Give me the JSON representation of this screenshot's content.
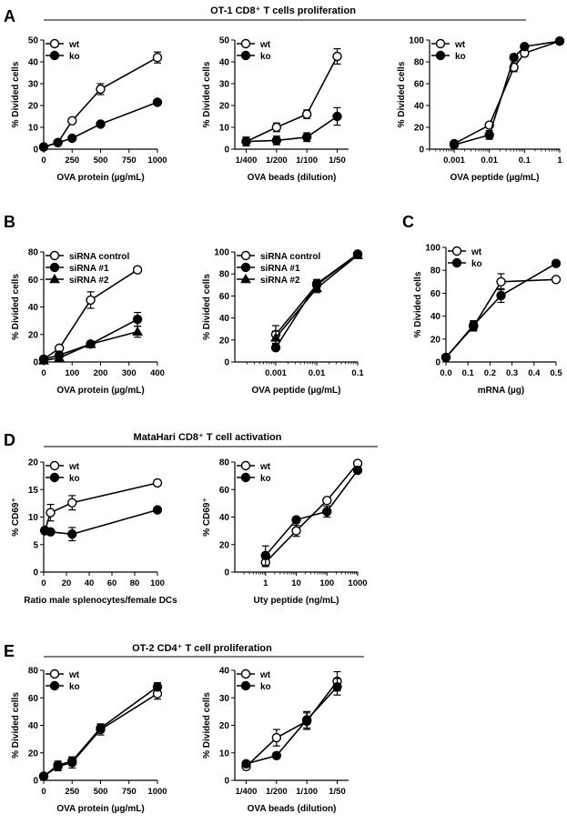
{
  "sections": [
    {
      "letter": "A",
      "title": "OT-1 CD8⁺ T cells proliferation"
    },
    {
      "letter": "B",
      "title": ""
    },
    {
      "letter": "C",
      "title": ""
    },
    {
      "letter": "D",
      "title": "MataHari CD8⁺ T cell activation"
    },
    {
      "letter": "E",
      "title": "OT-2 CD4⁺ T cell proliferation"
    }
  ],
  "chart_data": [
    {
      "id": "A1",
      "type": "line",
      "xscale": "linear",
      "xlabel": "OVA protein (µg/mL)",
      "ylabel": "% Divided cells",
      "xlim": [
        0,
        1000
      ],
      "ylim": [
        0,
        50
      ],
      "xticks": [
        0,
        250,
        500,
        750,
        1000
      ],
      "xticklabels": [
        "0",
        "250",
        "500",
        "750",
        "1000"
      ],
      "yticks": [
        0,
        10,
        20,
        30,
        40,
        50
      ],
      "legend": "top-left",
      "series": [
        {
          "name": "wt",
          "marker": "open-circle",
          "x": [
            0,
            125,
            250,
            500,
            1000
          ],
          "y": [
            1,
            3,
            13,
            27.5,
            42
          ],
          "err": [
            0.5,
            0.5,
            1,
            2.5,
            2.5
          ]
        },
        {
          "name": "ko",
          "marker": "filled-circle",
          "x": [
            0,
            125,
            250,
            500,
            1000
          ],
          "y": [
            1,
            3,
            5,
            11.5,
            21.5
          ],
          "err": [
            0.5,
            0.5,
            0.5,
            0.5,
            0.5
          ]
        }
      ]
    },
    {
      "id": "A2",
      "type": "line",
      "xscale": "category",
      "xlabel": "OVA beads (dilution)",
      "ylabel": "% Divided cells",
      "categories": [
        "1/400",
        "1/200",
        "1/100",
        "1/50"
      ],
      "ylim": [
        0,
        50
      ],
      "yticks": [
        0,
        10,
        20,
        30,
        40,
        50
      ],
      "legend": "top-left",
      "series": [
        {
          "name": "wt",
          "marker": "open-circle",
          "y": [
            3.5,
            10,
            16,
            42.5
          ],
          "err": [
            2,
            2,
            2,
            3.5
          ]
        },
        {
          "name": "ko",
          "marker": "filled-circle",
          "y": [
            3.5,
            4,
            5.5,
            15
          ],
          "err": [
            2,
            2,
            2,
            4
          ]
        }
      ]
    },
    {
      "id": "A3",
      "type": "line",
      "xscale": "log",
      "xlabel": "OVA peptide (µg/mL)",
      "ylabel": "% Divided cells",
      "xlim": [
        0.0002,
        1
      ],
      "ylim": [
        0,
        100
      ],
      "xticks": [
        0.001,
        0.01,
        0.1,
        1
      ],
      "xticklabels": [
        "0.001",
        "0.01",
        "0.1",
        "1"
      ],
      "yticks": [
        0,
        20,
        40,
        60,
        80,
        100
      ],
      "legend": "top-left",
      "series": [
        {
          "name": "wt",
          "marker": "open-circle",
          "x": [
            0.001,
            0.01,
            0.05,
            0.1,
            1
          ],
          "y": [
            5,
            22,
            75,
            88,
            99
          ],
          "err": [
            1,
            2,
            4,
            3,
            1
          ]
        },
        {
          "name": "ko",
          "marker": "filled-circle",
          "x": [
            0.001,
            0.01,
            0.05,
            0.1,
            1
          ],
          "y": [
            4,
            13,
            84,
            94,
            99
          ],
          "err": [
            1,
            4,
            3,
            2,
            1
          ]
        }
      ]
    },
    {
      "id": "B1",
      "type": "line",
      "xscale": "linear",
      "xlabel": "OVA protein (µg/mL)",
      "ylabel": "% Divided cells",
      "xlim": [
        0,
        400
      ],
      "ylim": [
        0,
        80
      ],
      "xticks": [
        0,
        100,
        200,
        300,
        400
      ],
      "xticklabels": [
        "0",
        "100",
        "200",
        "300",
        "400"
      ],
      "yticks": [
        0,
        20,
        40,
        60,
        80
      ],
      "legend": "top-left",
      "series": [
        {
          "name": "siRNA control",
          "marker": "open-circle",
          "x": [
            0,
            55,
            165,
            330
          ],
          "y": [
            2,
            10,
            45,
            67
          ],
          "err": [
            1,
            1.5,
            6,
            1
          ]
        },
        {
          "name": "siRNA #1",
          "marker": "filled-circle",
          "x": [
            0,
            55,
            165,
            330
          ],
          "y": [
            2,
            5,
            13,
            31
          ],
          "err": [
            1,
            1,
            2,
            5
          ]
        },
        {
          "name": "siRNA #2",
          "marker": "filled-triangle",
          "x": [
            0,
            55,
            165,
            330
          ],
          "y": [
            1,
            3,
            13,
            22
          ],
          "err": [
            1,
            1,
            2,
            4
          ]
        }
      ]
    },
    {
      "id": "B2",
      "type": "line",
      "xscale": "log",
      "xlabel": "OVA peptide (µg/mL)",
      "ylabel": "% Divided cells",
      "xlim": [
        0.0001,
        0.1
      ],
      "ylim": [
        0,
        100
      ],
      "xticks": [
        0.001,
        0.01,
        0.1
      ],
      "xticklabels": [
        "0.001",
        "0.01",
        "0.1"
      ],
      "yticks": [
        0,
        20,
        40,
        60,
        80,
        100
      ],
      "legend": "top-left",
      "series": [
        {
          "name": "siRNA control",
          "marker": "open-circle",
          "x": [
            0.001,
            0.01,
            0.1
          ],
          "y": [
            25,
            70,
            98
          ],
          "err": [
            8,
            4,
            1
          ]
        },
        {
          "name": "siRNA #1",
          "marker": "filled-circle",
          "x": [
            0.001,
            0.01,
            0.1
          ],
          "y": [
            13,
            71,
            98
          ],
          "err": [
            2,
            4,
            1
          ]
        },
        {
          "name": "siRNA #2",
          "marker": "filled-triangle",
          "x": [
            0.001,
            0.01,
            0.1
          ],
          "y": [
            22,
            67,
            97
          ],
          "err": [
            6,
            4,
            1
          ]
        }
      ]
    },
    {
      "id": "C",
      "type": "line",
      "xscale": "linear",
      "xlabel": "mRNA (µg)",
      "ylabel": "% Divided cells",
      "xlim": [
        0,
        0.5
      ],
      "ylim": [
        0,
        100
      ],
      "xticks": [
        0,
        0.1,
        0.2,
        0.3,
        0.4,
        0.5
      ],
      "xticklabels": [
        "0.0",
        "0.1",
        "0.2",
        "0.3",
        "0.4",
        "0.5"
      ],
      "yticks": [
        0,
        20,
        40,
        60,
        80,
        100
      ],
      "legend": "top-left",
      "series": [
        {
          "name": "wt",
          "marker": "open-circle",
          "x": [
            0,
            0.125,
            0.25,
            0.5
          ],
          "y": [
            4,
            31,
            70,
            72
          ],
          "err": [
            1,
            4,
            7,
            1
          ]
        },
        {
          "name": "ko",
          "marker": "filled-circle",
          "x": [
            0,
            0.125,
            0.25,
            0.5
          ],
          "y": [
            4,
            32,
            58,
            86
          ],
          "err": [
            1,
            4,
            6,
            1
          ]
        }
      ]
    },
    {
      "id": "D1",
      "type": "line",
      "xscale": "linear",
      "xlabel": "Ratio male splenocytes/female DCs",
      "ylabel": "% CD69⁺",
      "xlim": [
        0,
        100
      ],
      "ylim": [
        0,
        20
      ],
      "xticks": [
        0,
        20,
        40,
        60,
        80,
        100
      ],
      "xticklabels": [
        "0",
        "20",
        "40",
        "60",
        "80",
        "100"
      ],
      "yticks": [
        0,
        5,
        10,
        15,
        20
      ],
      "legend": "top-left",
      "series": [
        {
          "name": "wt",
          "marker": "open-circle",
          "x": [
            1,
            6,
            25,
            100
          ],
          "y": [
            7.5,
            10.8,
            12.6,
            16.2
          ],
          "err": [
            0.5,
            1.5,
            1.3,
            0.5
          ]
        },
        {
          "name": "ko",
          "marker": "filled-circle",
          "x": [
            1,
            6,
            25,
            100
          ],
          "y": [
            7.6,
            7.3,
            6.9,
            11.3
          ],
          "err": [
            0.4,
            0.4,
            1.2,
            0.3
          ]
        }
      ]
    },
    {
      "id": "D2",
      "type": "line",
      "xscale": "log",
      "xlabel": "Uty peptide (ng/mL)",
      "ylabel": "% CD69⁺",
      "xlim": [
        0.1,
        1000
      ],
      "ylim": [
        0,
        80
      ],
      "xticks": [
        1,
        10,
        100,
        1000
      ],
      "xticklabels": [
        "1",
        "10",
        "100",
        "1000"
      ],
      "yticks": [
        0,
        20,
        40,
        60,
        80
      ],
      "legend": "top-left",
      "series": [
        {
          "name": "wt",
          "marker": "open-circle",
          "x": [
            1,
            10,
            100,
            1000
          ],
          "y": [
            7,
            30,
            52,
            79
          ],
          "err": [
            3,
            4,
            2,
            1
          ]
        },
        {
          "name": "ko",
          "marker": "filled-circle",
          "x": [
            1,
            10,
            100,
            1000
          ],
          "y": [
            12,
            38,
            44,
            74
          ],
          "err": [
            7,
            2,
            4,
            2
          ]
        }
      ]
    },
    {
      "id": "E1",
      "type": "line",
      "xscale": "linear",
      "xlabel": "OVA protein (µg/mL)",
      "ylabel": "% Divided cells",
      "xlim": [
        0,
        1000
      ],
      "ylim": [
        0,
        80
      ],
      "xticks": [
        0,
        250,
        500,
        750,
        1000
      ],
      "xticklabels": [
        "0",
        "250",
        "500",
        "750",
        "1000"
      ],
      "yticks": [
        0,
        20,
        40,
        60,
        80
      ],
      "legend": "top-left",
      "series": [
        {
          "name": "wt",
          "marker": "open-circle",
          "x": [
            0,
            125,
            250,
            500,
            1000
          ],
          "y": [
            3,
            10,
            13,
            37,
            63
          ],
          "err": [
            1,
            3,
            4,
            4,
            4
          ]
        },
        {
          "name": "ko",
          "marker": "filled-circle",
          "x": [
            0,
            125,
            250,
            500,
            1000
          ],
          "y": [
            3,
            11,
            14,
            38,
            68
          ],
          "err": [
            1,
            3,
            3,
            3,
            3
          ]
        }
      ]
    },
    {
      "id": "E2",
      "type": "line",
      "xscale": "category",
      "xlabel": "OVA beads (dilution)",
      "ylabel": "% Divided cells",
      "categories": [
        "1/400",
        "1/200",
        "1/100",
        "1/50"
      ],
      "ylim": [
        0,
        40
      ],
      "yticks": [
        0,
        10,
        20,
        30,
        40
      ],
      "legend": "top-left",
      "series": [
        {
          "name": "wt",
          "marker": "open-circle",
          "y": [
            5,
            15.5,
            21.5,
            36
          ],
          "err": [
            1,
            3,
            3,
            3.5
          ]
        },
        {
          "name": "ko",
          "marker": "filled-circle",
          "y": [
            6,
            9,
            22,
            34
          ],
          "err": [
            1,
            1,
            3,
            3
          ]
        }
      ]
    }
  ]
}
